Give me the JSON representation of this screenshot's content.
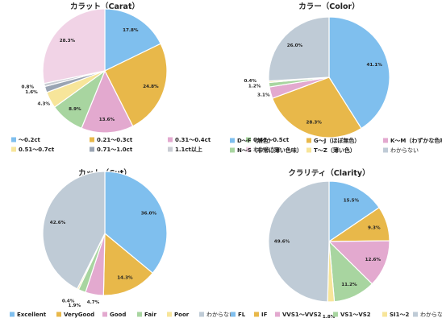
{
  "chart_data": [
    {
      "type": "pie",
      "title": "カラット（Carat）",
      "categories": [
        "～0.2ct",
        "0.21～0.3ct",
        "0.31～0.4ct",
        "0.41～0.5ct",
        "0.51～0.7ct",
        "0.71～1.0ct",
        "1.1ct以上",
        "わからない"
      ],
      "values": [
        17.8,
        24.8,
        13.6,
        8.9,
        4.3,
        1.6,
        0.8,
        28.3
      ],
      "labels": [
        "17.8%",
        "24.8%",
        "13.6%",
        "8.9%",
        "4.3%",
        "1.6%",
        "0.8%",
        "28.3%"
      ],
      "colors": [
        "#7fbfee",
        "#e8b84a",
        "#e3a9cf",
        "#a8d5a0",
        "#f7e59a",
        "#9aa4b3",
        "#c9ccd3",
        "#f1d3e6"
      ],
      "legend_position": "bottom",
      "legend_columns": 4
    },
    {
      "type": "pie",
      "title": "カラー（Color）",
      "categories": [
        "D～F（無色）",
        "G～J（ほぼ無色）",
        "K～M（わずかな色味）",
        "N～S（非常に薄い色味）",
        "T～Z（薄い色）",
        "わからない"
      ],
      "values": [
        41.1,
        28.3,
        3.1,
        1.2,
        0.4,
        26.0
      ],
      "labels": [
        "41.1%",
        "28.3%",
        "3.1%",
        "1.2%",
        "0.4%",
        "26.0%"
      ],
      "colors": [
        "#7fbfee",
        "#e8b84a",
        "#e3a9cf",
        "#a8d5a0",
        "#f7e59a",
        "#bfcbd6"
      ],
      "legend_position": "bottom",
      "legend_columns": 3
    },
    {
      "type": "pie",
      "title": "カット（Cut）",
      "categories": [
        "Excellent",
        "VeryGood",
        "Good",
        "Fair",
        "Poor",
        "わからない"
      ],
      "values": [
        36.0,
        14.3,
        4.7,
        1.9,
        0.4,
        42.6
      ],
      "labels": [
        "36.0%",
        "14.3%",
        "4.7%",
        "1.9%",
        "0.4%",
        "42.6%"
      ],
      "colors": [
        "#7fbfee",
        "#e8b84a",
        "#e3a9cf",
        "#a8d5a0",
        "#f7e59a",
        "#bfcbd6"
      ],
      "legend_position": "bottom",
      "legend_columns": 6
    },
    {
      "type": "pie",
      "title": "クラリティ（Clarity）",
      "categories": [
        "FL",
        "IF",
        "VVS1～VVS2",
        "VS1～VS2",
        "SI1～2",
        "わからない"
      ],
      "values": [
        15.5,
        9.3,
        12.6,
        11.2,
        1.8,
        49.6
      ],
      "labels": [
        "15.5%",
        "9.3%",
        "12.6%",
        "11.2%",
        "1.8%",
        "49.6%"
      ],
      "colors": [
        "#7fbfee",
        "#e8b84a",
        "#e3a9cf",
        "#a8d5a0",
        "#f7e59a",
        "#bfcbd6"
      ],
      "legend_position": "bottom",
      "legend_columns": 6
    }
  ]
}
